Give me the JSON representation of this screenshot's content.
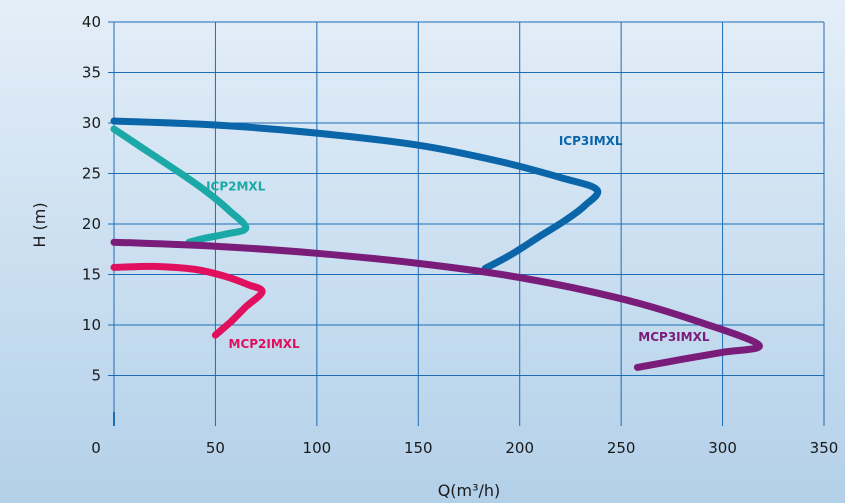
{
  "chart_data": {
    "type": "line",
    "xlabel": "Q(m³/h)",
    "ylabel": "H (m)",
    "xlim": [
      0,
      350
    ],
    "ylim": [
      0,
      40
    ],
    "xticks": [
      0,
      50,
      100,
      150,
      200,
      250,
      300,
      350
    ],
    "yticks": [
      5,
      10,
      15,
      20,
      25,
      30,
      35,
      40
    ],
    "grid": true,
    "series": [
      {
        "name": "ICP3IMXL",
        "color": "#0a66a8",
        "points": [
          [
            0,
            30.2
          ],
          [
            50,
            29.8
          ],
          [
            100,
            29.0
          ],
          [
            150,
            27.8
          ],
          [
            190,
            26.2
          ],
          [
            220,
            24.6
          ],
          [
            238,
            23.4
          ],
          [
            232,
            21.8
          ],
          [
            222,
            20.3
          ],
          [
            210,
            18.8
          ],
          [
            196,
            17.0
          ],
          [
            183,
            15.6
          ]
        ]
      },
      {
        "name": "ICP2MXL",
        "color": "#1aa9a6",
        "points": [
          [
            0,
            29.4
          ],
          [
            15,
            27.4
          ],
          [
            30,
            25.4
          ],
          [
            45,
            23.3
          ],
          [
            57,
            21.3
          ],
          [
            65,
            19.6
          ],
          [
            55,
            19.0
          ],
          [
            45,
            18.6
          ],
          [
            37,
            18.2
          ]
        ]
      },
      {
        "name": "MCP3IMXL",
        "color": "#7a1c79",
        "points": [
          [
            0,
            18.2
          ],
          [
            50,
            17.8
          ],
          [
            100,
            17.1
          ],
          [
            150,
            16.1
          ],
          [
            200,
            14.7
          ],
          [
            250,
            12.6
          ],
          [
            290,
            10.2
          ],
          [
            318,
            8.0
          ],
          [
            300,
            7.3
          ],
          [
            280,
            6.6
          ],
          [
            258,
            5.8
          ]
        ]
      },
      {
        "name": "MCP2IMXL",
        "color": "#e0105e",
        "points": [
          [
            0,
            15.7
          ],
          [
            20,
            15.8
          ],
          [
            40,
            15.5
          ],
          [
            55,
            14.8
          ],
          [
            66,
            14.0
          ],
          [
            73,
            13.3
          ],
          [
            65,
            11.8
          ],
          [
            58,
            10.4
          ],
          [
            50,
            9.0
          ]
        ]
      }
    ]
  }
}
